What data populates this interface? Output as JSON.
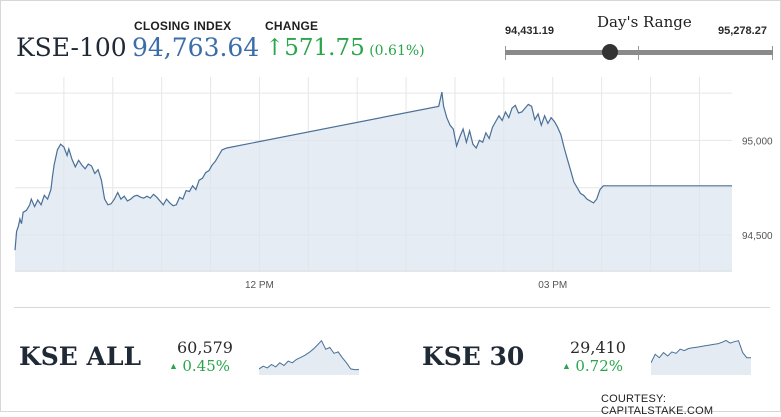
{
  "header": {
    "ticker": "KSE-100",
    "closing_label": "CLOSING INDEX",
    "closing_value": "94,763.64",
    "change_label": "CHANGE",
    "change_arrow": "↑",
    "change_value": "571.75",
    "change_pct": "(0.61%)"
  },
  "range": {
    "title": "Day's Range",
    "low": "94,431.19",
    "high": "95,278.27",
    "current_fraction": 0.39
  },
  "chart_data": {
    "type": "area",
    "title": "",
    "xlabel": "",
    "ylabel": "",
    "x_ticks": [
      "12 PM",
      "03 PM"
    ],
    "y_ticks": [
      95000,
      94500
    ],
    "y_tick_labels": [
      "95,000",
      "94,500"
    ],
    "ylim": [
      94310,
      95335
    ],
    "x_domain_minutes": [
      570,
      1010
    ],
    "grid": true,
    "series": [
      {
        "values": [
          [
            570,
            94420
          ],
          [
            571,
            94520
          ],
          [
            572,
            94545
          ],
          [
            573,
            94585
          ],
          [
            574,
            94560
          ],
          [
            575,
            94620
          ],
          [
            577,
            94630
          ],
          [
            579,
            94660
          ],
          [
            580,
            94690
          ],
          [
            582,
            94650
          ],
          [
            584,
            94685
          ],
          [
            586,
            94660
          ],
          [
            588,
            94710
          ],
          [
            590,
            94690
          ],
          [
            592,
            94740
          ],
          [
            593,
            94810
          ],
          [
            594,
            94870
          ],
          [
            596,
            94950
          ],
          [
            598,
            94980
          ],
          [
            600,
            94965
          ],
          [
            602,
            94920
          ],
          [
            603,
            94955
          ],
          [
            605,
            94900
          ],
          [
            607,
            94860
          ],
          [
            609,
            94895
          ],
          [
            611,
            94870
          ],
          [
            613,
            94850
          ],
          [
            615,
            94875
          ],
          [
            617,
            94865
          ],
          [
            619,
            94825
          ],
          [
            621,
            94845
          ],
          [
            623,
            94790
          ],
          [
            625,
            94690
          ],
          [
            627,
            94660
          ],
          [
            629,
            94665
          ],
          [
            631,
            94690
          ],
          [
            633,
            94725
          ],
          [
            635,
            94690
          ],
          [
            637,
            94705
          ],
          [
            639,
            94680
          ],
          [
            641,
            94690
          ],
          [
            643,
            94705
          ],
          [
            645,
            94710
          ],
          [
            647,
            94700
          ],
          [
            649,
            94695
          ],
          [
            651,
            94705
          ],
          [
            653,
            94695
          ],
          [
            655,
            94715
          ],
          [
            657,
            94700
          ],
          [
            659,
            94680
          ],
          [
            661,
            94660
          ],
          [
            663,
            94690
          ],
          [
            665,
            94670
          ],
          [
            667,
            94655
          ],
          [
            669,
            94660
          ],
          [
            671,
            94700
          ],
          [
            673,
            94690
          ],
          [
            675,
            94735
          ],
          [
            677,
            94730
          ],
          [
            679,
            94760
          ],
          [
            681,
            94740
          ],
          [
            683,
            94790
          ],
          [
            685,
            94800
          ],
          [
            687,
            94830
          ],
          [
            689,
            94840
          ],
          [
            691,
            94870
          ],
          [
            693,
            94890
          ],
          [
            695,
            94920
          ],
          [
            697,
            94950
          ],
          [
            700,
            94960
          ],
          [
            830,
            95180
          ],
          [
            832,
            95255
          ],
          [
            833,
            95180
          ],
          [
            835,
            95120
          ],
          [
            837,
            95080
          ],
          [
            839,
            95060
          ],
          [
            841,
            94970
          ],
          [
            843,
            95020
          ],
          [
            845,
            95060
          ],
          [
            847,
            94990
          ],
          [
            849,
            95050
          ],
          [
            851,
            94980
          ],
          [
            853,
            94960
          ],
          [
            855,
            95000
          ],
          [
            857,
            94990
          ],
          [
            859,
            95040
          ],
          [
            861,
            95010
          ],
          [
            863,
            95070
          ],
          [
            865,
            95100
          ],
          [
            867,
            95130
          ],
          [
            869,
            95105
          ],
          [
            871,
            95150
          ],
          [
            873,
            95120
          ],
          [
            875,
            95170
          ],
          [
            877,
            95185
          ],
          [
            879,
            95145
          ],
          [
            881,
            95150
          ],
          [
            883,
            95170
          ],
          [
            885,
            95190
          ],
          [
            887,
            95180
          ],
          [
            889,
            95110
          ],
          [
            891,
            95140
          ],
          [
            893,
            95080
          ],
          [
            895,
            95130
          ],
          [
            897,
            95090
          ],
          [
            899,
            95120
          ],
          [
            901,
            95100
          ],
          [
            903,
            95070
          ],
          [
            905,
            95030
          ],
          [
            907,
            94960
          ],
          [
            909,
            94900
          ],
          [
            911,
            94840
          ],
          [
            913,
            94780
          ],
          [
            915,
            94750
          ],
          [
            917,
            94720
          ],
          [
            919,
            94710
          ],
          [
            921,
            94690
          ],
          [
            923,
            94680
          ],
          [
            925,
            94670
          ],
          [
            927,
            94690
          ],
          [
            929,
            94740
          ],
          [
            931,
            94760
          ],
          [
            1010,
            94760
          ]
        ]
      }
    ]
  },
  "kse_all": {
    "name": "KSE ALL",
    "value": "60,579",
    "arrow": "▲",
    "change": "0.45%",
    "spark": [
      0.12,
      0.2,
      0.15,
      0.25,
      0.18,
      0.3,
      0.22,
      0.35,
      0.3,
      0.4,
      0.46,
      0.52,
      0.6,
      0.7,
      0.82,
      0.95,
      0.7,
      0.75,
      0.58,
      0.62,
      0.45,
      0.3,
      0.12,
      0.1,
      0.1
    ]
  },
  "kse_30": {
    "name": "KSE 30",
    "value": "29,410",
    "arrow": "▲",
    "change": "0.72%",
    "spark": [
      0.3,
      0.55,
      0.45,
      0.6,
      0.5,
      0.62,
      0.58,
      0.7,
      0.66,
      0.72,
      0.74,
      0.76,
      0.78,
      0.8,
      0.82,
      0.84,
      0.86,
      0.9,
      0.96,
      0.88,
      0.92,
      0.95,
      0.6,
      0.45,
      0.45
    ]
  },
  "footer": {
    "courtesy": "COURTESY: CAPITALSTAKE.COM"
  },
  "colors": {
    "line": "#4a6f98",
    "fill": "#dde6ef",
    "up": "#2aa54b",
    "accent": "#3b6ea8"
  }
}
